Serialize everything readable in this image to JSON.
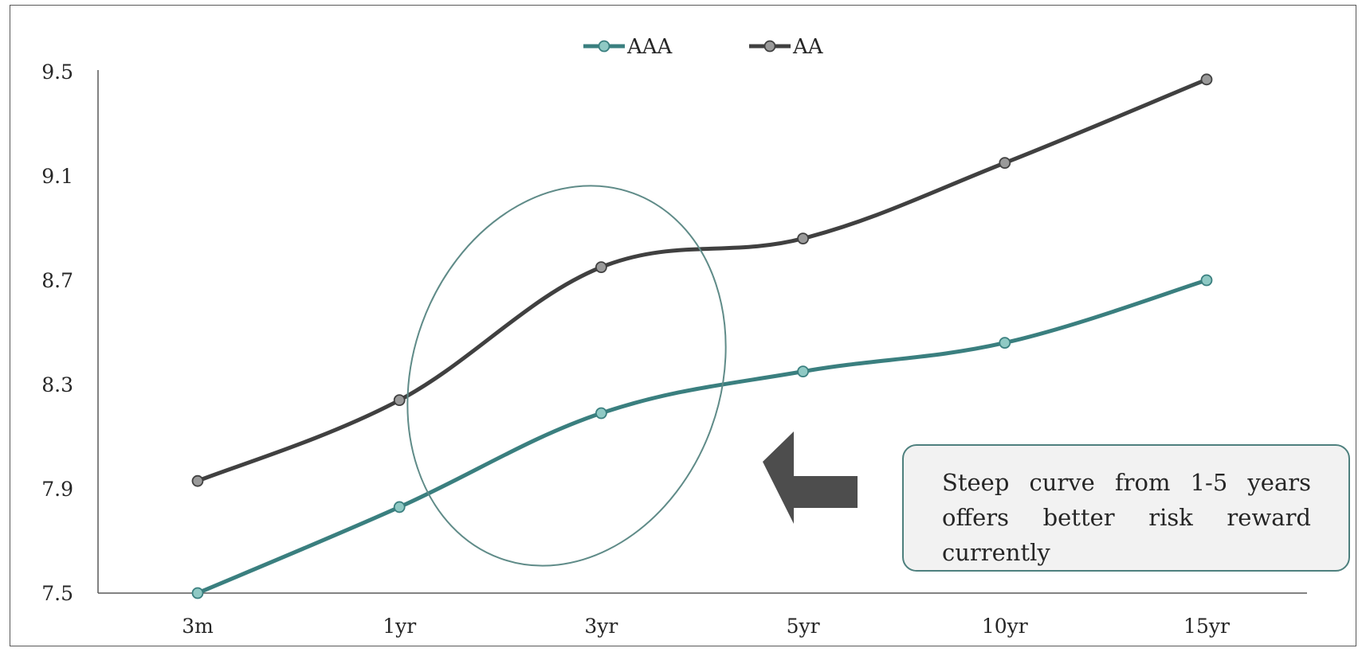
{
  "chart_data": {
    "type": "line",
    "title": "",
    "xlabel": "",
    "ylabel": "",
    "categories": [
      "3m",
      "1yr",
      "3yr",
      "5yr",
      "10yr",
      "15yr"
    ],
    "y_ticks": [
      "7.5",
      "7.9",
      "8.3",
      "8.7",
      "9.1",
      "9.5"
    ],
    "ylim": [
      7.5,
      9.5
    ],
    "grid": false,
    "legend_position": "top-center",
    "series": [
      {
        "name": "AAA",
        "color": "#3a7f7f",
        "marker_color": "#8fc9c4",
        "values": [
          7.5,
          7.83,
          8.19,
          8.35,
          8.46,
          8.7
        ]
      },
      {
        "name": "AA",
        "color": "#404040",
        "marker_color": "#9a9a9a",
        "values": [
          7.93,
          8.24,
          8.75,
          8.86,
          9.15,
          9.47
        ]
      }
    ],
    "annotations": {
      "callout_text": "Steep curve from 1-5 years offers better risk reward currently",
      "highlight": "ellipse around 1yr-3yr segment",
      "arrow": "left-pointing arrow toward highlighted segment",
      "arrow_color": "#4d4d4d",
      "ellipse_color": "#5f8b88"
    }
  }
}
